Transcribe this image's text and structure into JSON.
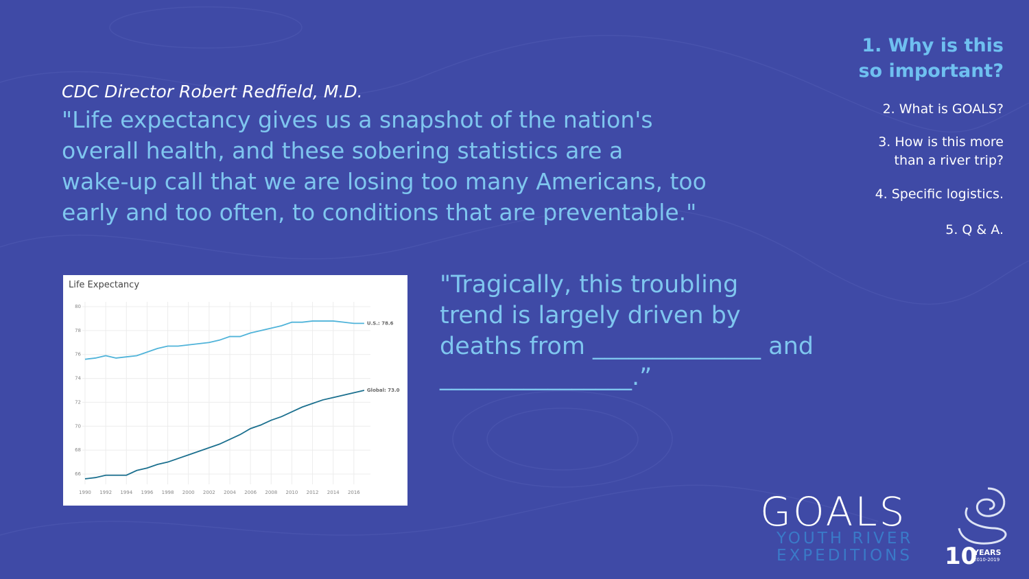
{
  "speaker": "CDC Director Robert Redfield, M.D.",
  "quote": [
    "\"Life expectancy gives us a snapshot of the nation's",
    "overall health, and these sobering statistics are a",
    "wake-up call that we are losing too many Americans, too",
    "early and too often, to conditions that are preventable.\""
  ],
  "question": [
    "\"Tragically, this troubling",
    "trend is largely driven by",
    "deaths from ______________ and",
    "________________.”"
  ],
  "agenda": [
    {
      "lines": [
        "1. Why is this",
        "so important?"
      ]
    },
    {
      "lines": [
        "2. What is GOALS?"
      ]
    },
    {
      "lines": [
        "3. How is this more",
        "than a river trip?"
      ]
    },
    {
      "lines": [
        "4. Specific logistics."
      ]
    },
    {
      "lines": [
        "5. Q & A."
      ]
    }
  ],
  "logo": {
    "name": "GOALS",
    "tagline": [
      "YOUTH RIVER",
      "EXPEDITIONS"
    ],
    "anniversary": "10",
    "years": "YEARS",
    "span": "2010-2019"
  },
  "chart_data": {
    "type": "line",
    "title": "Life Expectancy",
    "x": [
      1990,
      1991,
      1992,
      1993,
      1994,
      1995,
      1996,
      1997,
      1998,
      1999,
      2000,
      2001,
      2002,
      2003,
      2004,
      2005,
      2006,
      2007,
      2008,
      2009,
      2010,
      2011,
      2012,
      2013,
      2014,
      2015,
      2016,
      2017
    ],
    "series": [
      {
        "color": "#4fb3d9",
        "end_label": "U.S.: 78.6",
        "values": [
          75.6,
          75.7,
          75.9,
          75.7,
          75.8,
          75.9,
          76.2,
          76.5,
          76.7,
          76.7,
          76.8,
          76.9,
          77.0,
          77.2,
          77.5,
          77.5,
          77.8,
          78.0,
          78.2,
          78.4,
          78.7,
          78.7,
          78.8,
          78.8,
          78.8,
          78.7,
          78.6,
          78.6
        ]
      },
      {
        "color": "#1a6f8e",
        "end_label": "Global: 73.0",
        "values": [
          65.6,
          65.7,
          65.9,
          65.9,
          65.9,
          66.3,
          66.5,
          66.8,
          67.0,
          67.3,
          67.6,
          67.9,
          68.2,
          68.5,
          68.9,
          69.3,
          69.8,
          70.1,
          70.5,
          70.8,
          71.2,
          71.6,
          71.9,
          72.2,
          72.4,
          72.6,
          72.8,
          73.0
        ]
      }
    ],
    "xlim": [
      1989,
      2018
    ],
    "ylim": [
      65,
      80.5
    ],
    "xticks": [
      1990,
      1992,
      1994,
      1996,
      1998,
      2000,
      2002,
      2004,
      2006,
      2008,
      2010,
      2012,
      2014,
      2016
    ],
    "yticks": [
      66,
      68,
      70,
      72,
      74,
      76,
      78,
      80
    ],
    "grid": true
  }
}
